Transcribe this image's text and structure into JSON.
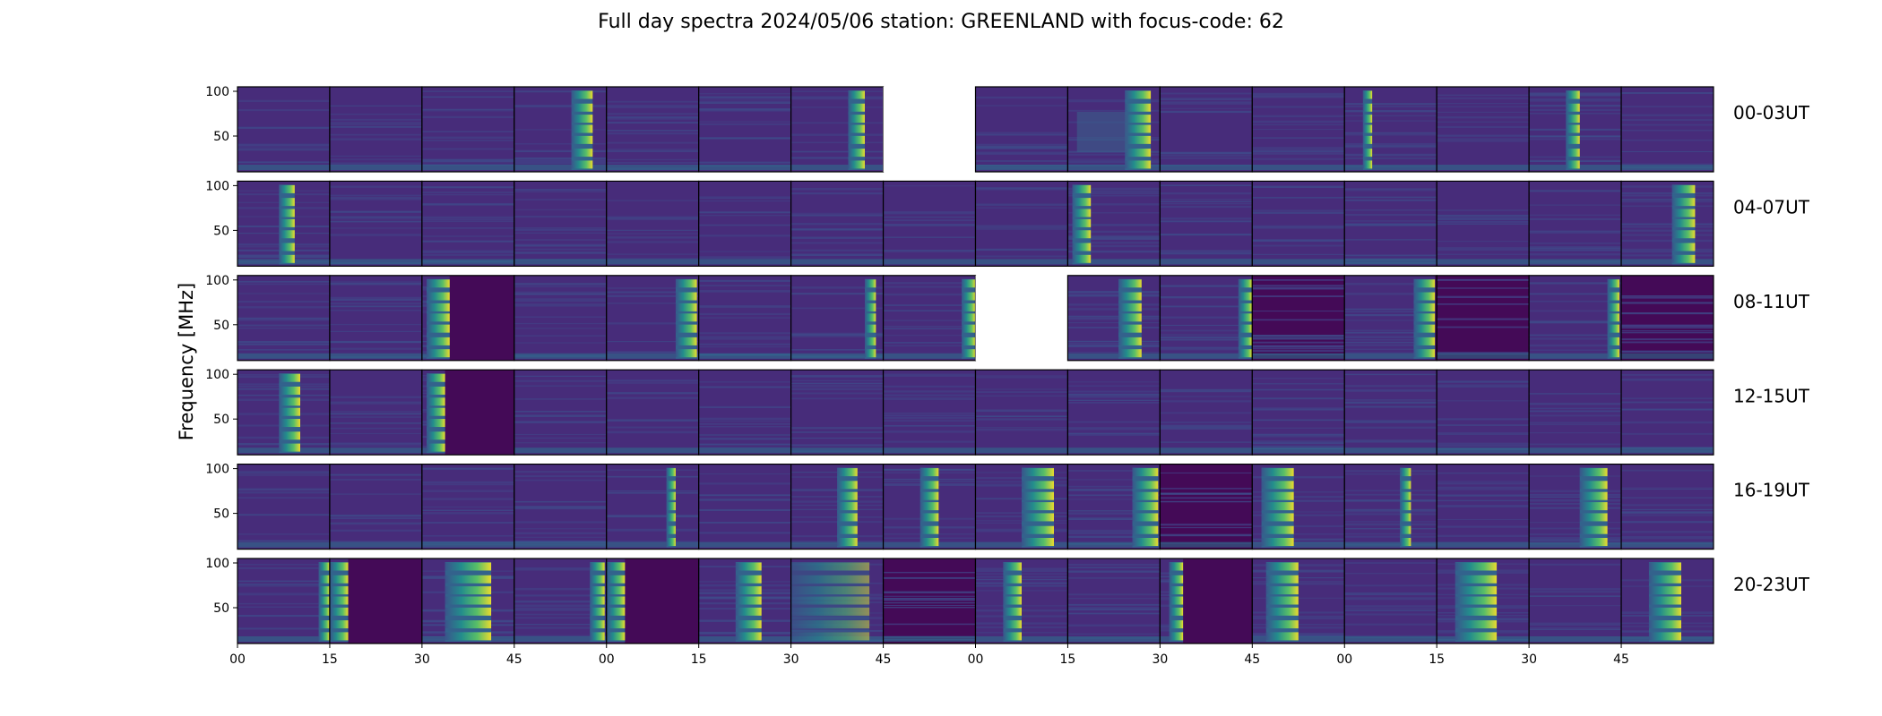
{
  "chart_data": {
    "type": "heatmap",
    "title": "Full day spectra 2024/05/06 station: GREENLAND with focus-code: 62",
    "ylabel": "Frequency [MHz]",
    "xlabel": "",
    "colormap": "viridis",
    "ylim": [
      10,
      105
    ],
    "y_ticks": [
      50,
      100
    ],
    "x_tick_labels": [
      "00",
      "15",
      "30",
      "45",
      "00",
      "15",
      "30",
      "45",
      "00",
      "15",
      "30",
      "45",
      "00",
      "15",
      "30",
      "45"
    ],
    "panels_per_row": 16,
    "panel_minutes": 15,
    "rows": [
      {
        "label": "00-03UT",
        "panels": [
          {
            "burst": null
          },
          {
            "burst": null
          },
          {
            "burst": null
          },
          {
            "burst": [
              0.62,
              0.85
            ]
          },
          {
            "burst": null
          },
          {
            "burst": null
          },
          {
            "burst": [
              0.62,
              0.8
            ]
          },
          {
            "missing": true
          },
          {
            "burst": null
          },
          {
            "burst": [
              0.62,
              0.9
            ],
            "wide": true
          },
          {
            "burst": null
          },
          {
            "burst": null
          },
          {
            "burst": [
              0.2,
              0.3
            ]
          },
          {
            "burst": null
          },
          {
            "burst": [
              0.4,
              0.55
            ]
          },
          {
            "burst": null
          }
        ]
      },
      {
        "label": "04-07UT",
        "panels": [
          {
            "burst": [
              0.45,
              0.62
            ]
          },
          {
            "burst": null
          },
          {
            "burst": null
          },
          {
            "burst": null
          },
          {
            "burst": null
          },
          {
            "burst": null
          },
          {
            "burst": null
          },
          {
            "burst": null
          },
          {
            "burst": null
          },
          {
            "burst": [
              0.05,
              0.25
            ]
          },
          {
            "burst": null
          },
          {
            "burst": null
          },
          {
            "burst": null
          },
          {
            "burst": null
          },
          {
            "burst": null
          },
          {
            "burst": [
              0.55,
              0.8
            ]
          }
        ]
      },
      {
        "label": "08-11UT",
        "panels": [
          {
            "burst": null
          },
          {
            "burst": null
          },
          {
            "burst": [
              0.05,
              0.3
            ],
            "dark_after": true
          },
          {
            "burst": null
          },
          {
            "burst": [
              0.75,
              0.98
            ]
          },
          {
            "burst": null
          },
          {
            "burst": [
              0.8,
              0.92
            ]
          },
          {
            "burst": [
              0.85,
              1.0
            ]
          },
          {
            "missing": true
          },
          {
            "burst": [
              0.55,
              0.8
            ]
          },
          {
            "burst": [
              0.85,
              1.0
            ],
            "dark_next": true
          },
          {
            "dark": true
          },
          {
            "burst": [
              0.75,
              0.98
            ],
            "dark_after": true
          },
          {
            "dark": true
          },
          {
            "burst": [
              0.85,
              0.98
            ]
          },
          {
            "dark": true
          }
        ]
      },
      {
        "label": "12-15UT",
        "panels": [
          {
            "burst": [
              0.45,
              0.68
            ]
          },
          {
            "burst": null
          },
          {
            "burst": [
              0.05,
              0.25
            ],
            "dark_after": true
          },
          {
            "burst": null
          },
          {
            "burst": null
          },
          {
            "burst": null
          },
          {
            "burst": null
          },
          {
            "burst": null
          },
          {
            "burst": null
          },
          {
            "burst": null
          },
          {
            "burst": null
          },
          {
            "burst": null
          },
          {
            "burst": null
          },
          {
            "burst": null
          },
          {
            "burst": null
          },
          {
            "burst": null
          }
        ]
      },
      {
        "label": "16-19UT",
        "panels": [
          {
            "burst": null
          },
          {
            "burst": null
          },
          {
            "burst": null
          },
          {
            "burst": null
          },
          {
            "burst": [
              0.65,
              0.75
            ]
          },
          {
            "burst": null
          },
          {
            "burst": [
              0.5,
              0.72
            ]
          },
          {
            "burst": [
              0.4,
              0.6
            ]
          },
          {
            "burst": [
              0.5,
              0.85
            ]
          },
          {
            "burst": [
              0.7,
              0.98
            ],
            "dark_next": true
          },
          {
            "dark": true
          },
          {
            "burst": [
              0.1,
              0.45
            ]
          },
          {
            "burst": [
              0.6,
              0.72
            ]
          },
          {
            "burst": null
          },
          {
            "burst": [
              0.55,
              0.85
            ]
          },
          {
            "burst": null
          }
        ]
      },
      {
        "label": "20-23UT",
        "panels": [
          {
            "burst": [
              0.88,
              1.0
            ],
            "dark_next_partial": true
          },
          {
            "burst": [
              0.0,
              0.2
            ],
            "dark_after": true
          },
          {
            "burst": [
              0.25,
              0.75
            ]
          },
          {
            "burst": [
              0.82,
              0.98
            ]
          },
          {
            "burst": [
              0.0,
              0.2
            ],
            "dark_after": true
          },
          {
            "burst": [
              0.4,
              0.68
            ]
          },
          {
            "burst": [
              0.0,
              0.85
            ],
            "faint": true
          },
          {
            "dark": true
          },
          {
            "burst": [
              0.3,
              0.5
            ]
          },
          {
            "burst": null
          },
          {
            "burst": [
              0.1,
              0.25
            ],
            "dark_after": true
          },
          {
            "burst": [
              0.15,
              0.5
            ]
          },
          {
            "burst": null
          },
          {
            "burst": [
              0.2,
              0.65
            ]
          },
          {
            "burst": null
          },
          {
            "burst": [
              0.3,
              0.65
            ]
          }
        ]
      }
    ]
  }
}
